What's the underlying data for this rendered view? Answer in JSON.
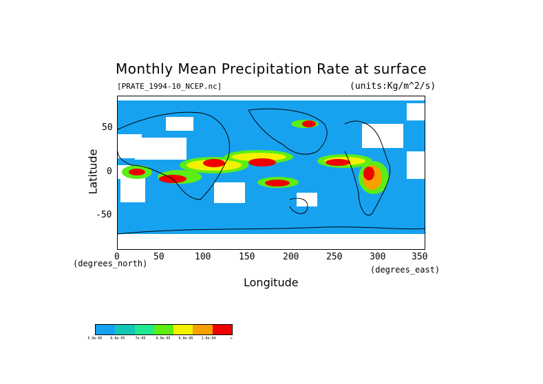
{
  "title": "Monthly Mean Precipitation Rate at surface",
  "file_label": "[PRATE_1994-10_NCEP.nc]",
  "units_label": "(units:Kg/m^2/s)",
  "axes": {
    "x_label": "Longitude",
    "y_label": "Latitude",
    "x_units": "(degrees_east)",
    "y_units": "(degrees_north)",
    "x_ticks": [
      "0",
      "50",
      "100",
      "150",
      "200",
      "250",
      "300",
      "350"
    ],
    "y_ticks": [
      "50",
      "0",
      "-50"
    ]
  },
  "legend": {
    "colors": [
      "#17a2f0",
      "#11c7b4",
      "#1fe88e",
      "#5ced15",
      "#f2f200",
      "#f7a000",
      "#f00000"
    ],
    "tick_labels": [
      "5.0e-05",
      "6.0e-05",
      "7e-05",
      "8.0e-05",
      "9.0e-05",
      "1.0e-04",
      "∞"
    ]
  },
  "map": {
    "background_color": "#17a2f0",
    "no_data_color": "#ffffff",
    "x_range": [
      0,
      360
    ],
    "y_range": [
      -90,
      90
    ]
  }
}
